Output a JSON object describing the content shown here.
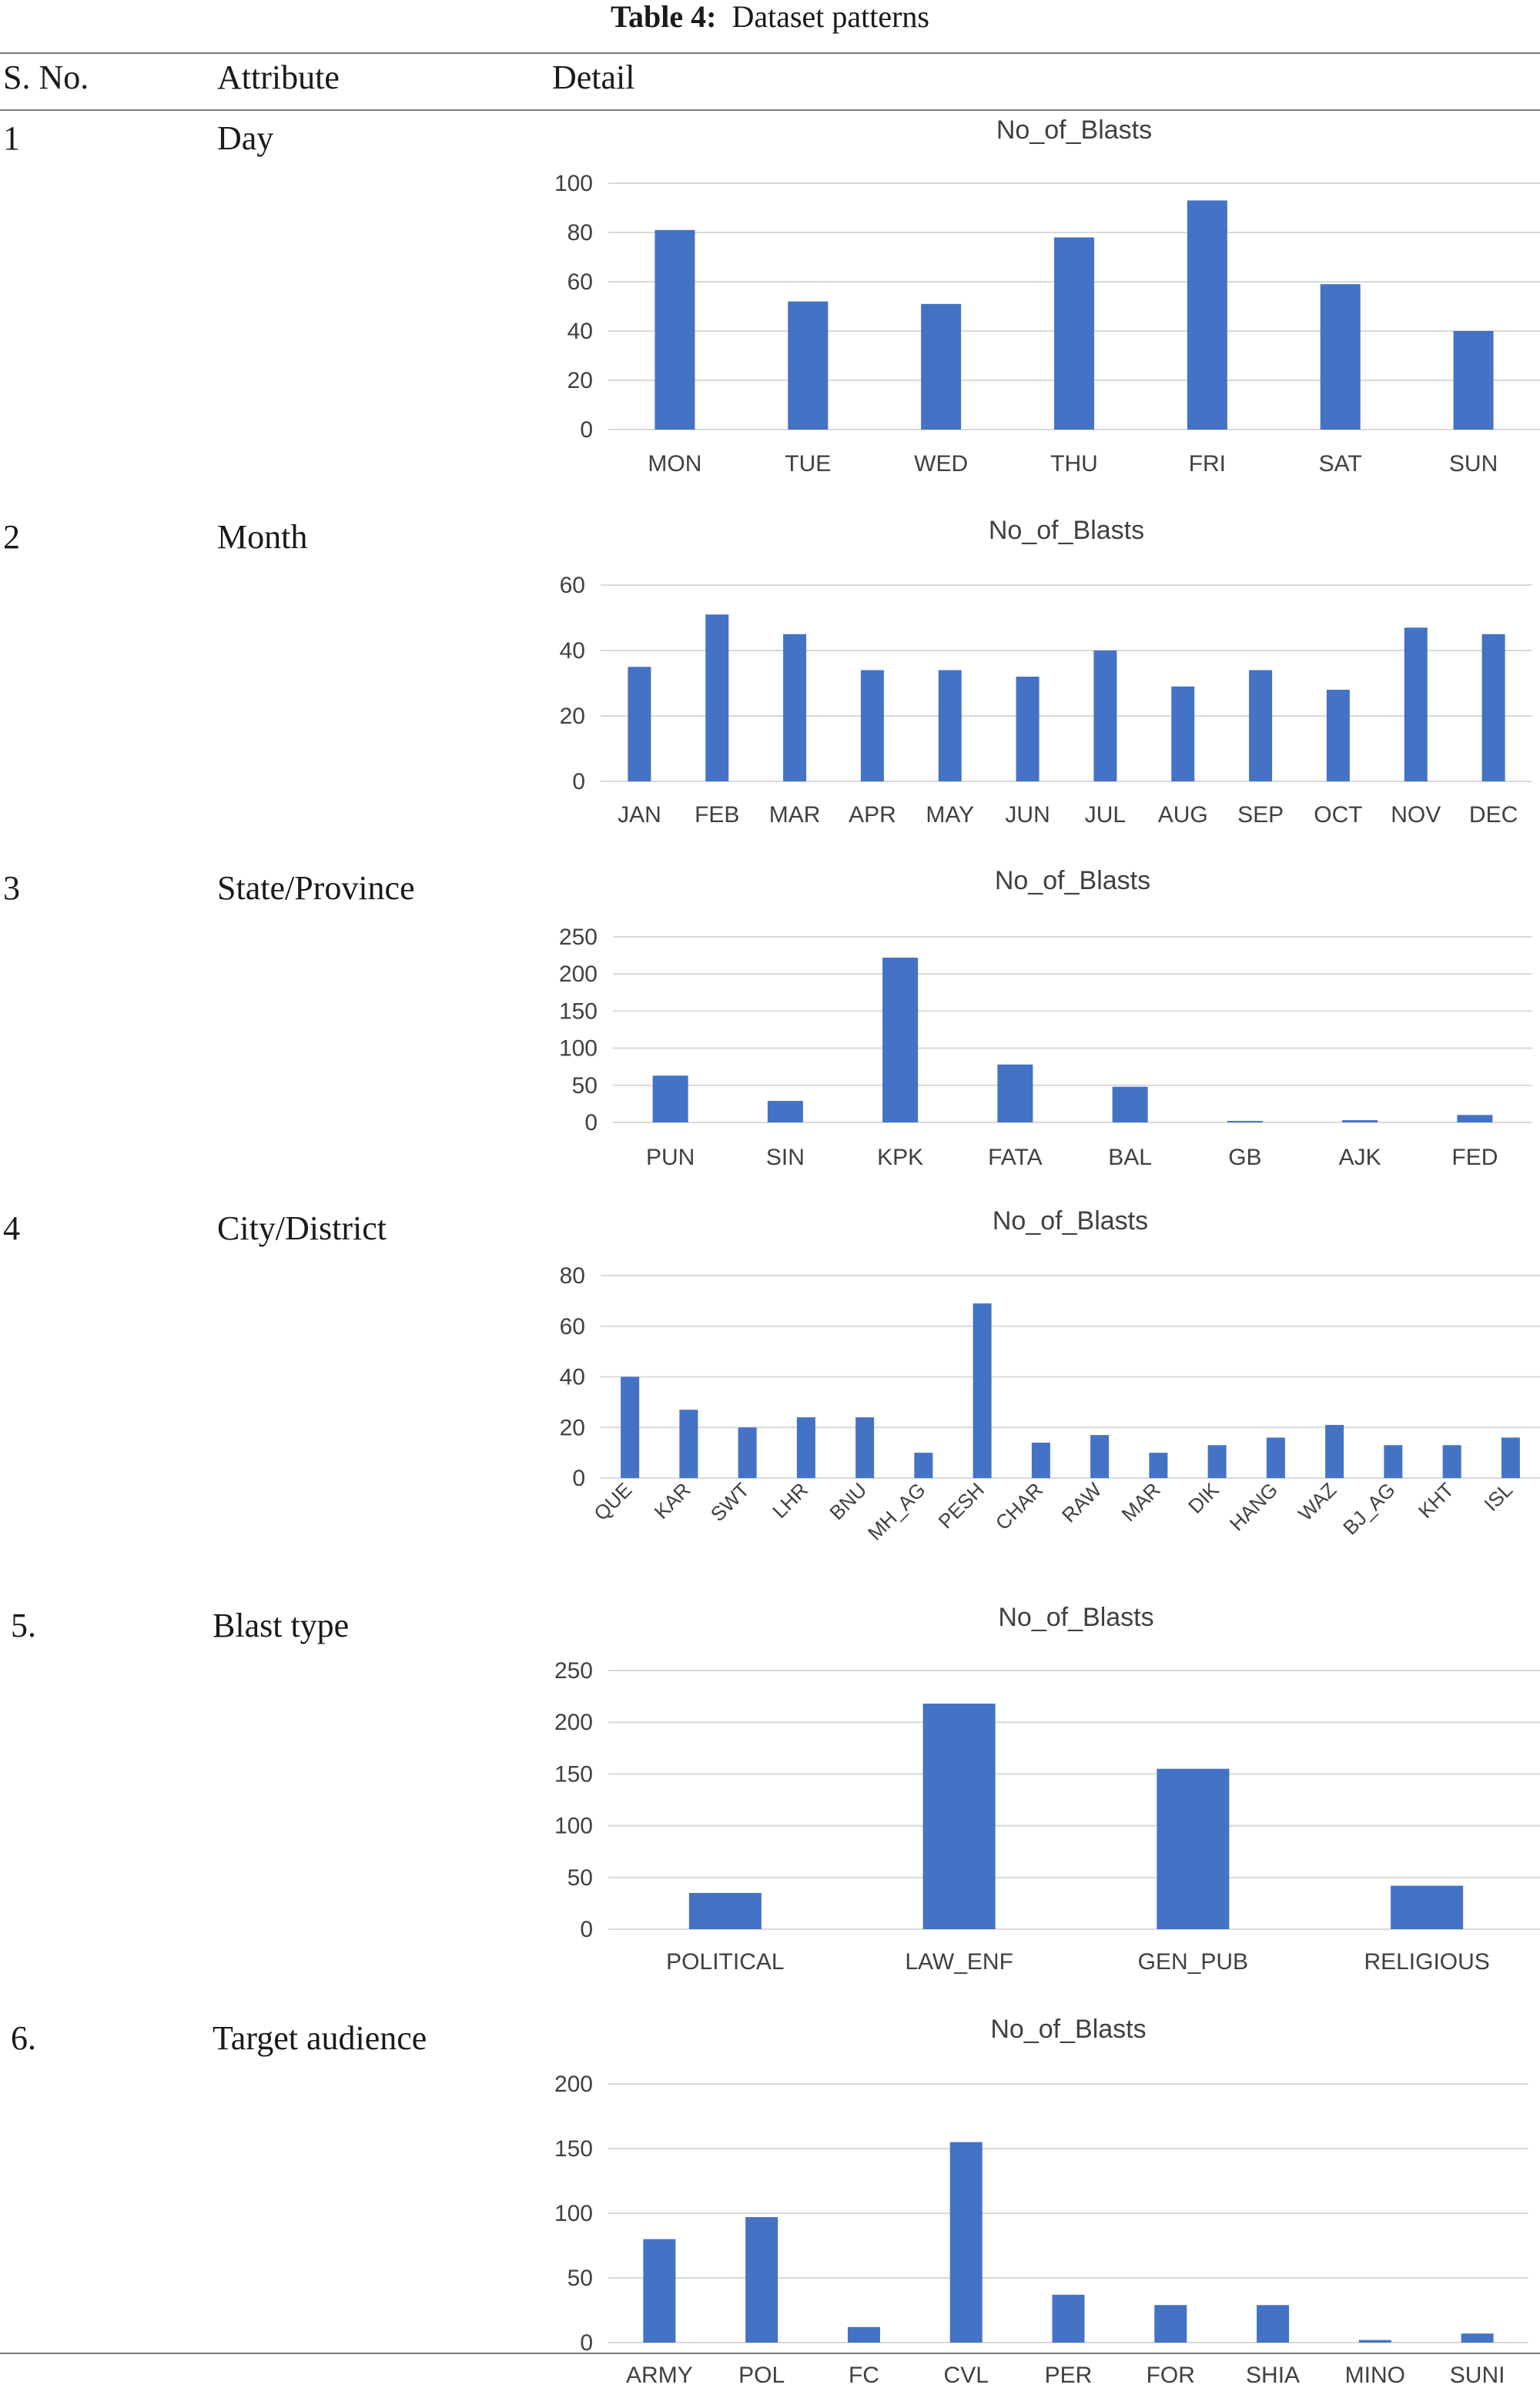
{
  "table": {
    "caption_label": "Table 4:",
    "caption_text": "Dataset patterns",
    "headers": [
      "S. No.",
      "Attribute",
      "Detail"
    ],
    "rows": [
      {
        "num": "1",
        "attribute": "Day"
      },
      {
        "num": "2",
        "attribute": "Month"
      },
      {
        "num": "3",
        "attribute": "State/Province"
      },
      {
        "num": "4",
        "attribute": "City/District"
      },
      {
        "num": "5.",
        "attribute": "Blast type"
      },
      {
        "num": "6.",
        "attribute": "Target audience"
      }
    ]
  },
  "colors": {
    "bar": "#4472C4",
    "grid": "#D9D9D9"
  },
  "chart_data": [
    {
      "type": "bar",
      "title": "No_of_Blasts",
      "categories": [
        "MON",
        "TUE",
        "WED",
        "THU",
        "FRI",
        "SAT",
        "SUN"
      ],
      "values": [
        81,
        52,
        51,
        78,
        93,
        59,
        40
      ],
      "ylim": [
        0,
        100
      ],
      "yticks": [
        0,
        20,
        40,
        60,
        80,
        100
      ],
      "grid": true
    },
    {
      "type": "bar",
      "title": "No_of_Blasts",
      "categories": [
        "JAN",
        "FEB",
        "MAR",
        "APR",
        "MAY",
        "JUN",
        "JUL",
        "AUG",
        "SEP",
        "OCT",
        "NOV",
        "DEC"
      ],
      "values": [
        35,
        51,
        45,
        34,
        34,
        32,
        40,
        29,
        34,
        28,
        47,
        45
      ],
      "ylim": [
        0,
        60
      ],
      "yticks": [
        0,
        20,
        40,
        60
      ],
      "grid": true
    },
    {
      "type": "bar",
      "title": "No_of_Blasts",
      "categories": [
        "PUN",
        "SIN",
        "KPK",
        "FATA",
        "BAL",
        "GB",
        "AJK",
        "FED"
      ],
      "values": [
        63,
        29,
        222,
        78,
        48,
        2,
        3,
        10
      ],
      "ylim": [
        0,
        250
      ],
      "yticks": [
        0,
        50,
        100,
        150,
        200,
        250
      ],
      "grid": true
    },
    {
      "type": "bar",
      "title": "No_of_Blasts",
      "categories": [
        "QUE",
        "KAR",
        "SWT",
        "LHR",
        "BNU",
        "MH_AG",
        "PESH",
        "CHAR",
        "RAW",
        "MAR",
        "DIK",
        "HANG",
        "WAZ",
        "BJ_AG",
        "KHT",
        "ISL"
      ],
      "values": [
        40,
        27,
        20,
        24,
        24,
        10,
        69,
        14,
        17,
        10,
        13,
        16,
        21,
        13,
        13,
        16
      ],
      "ylim": [
        0,
        80
      ],
      "yticks": [
        0,
        20,
        40,
        60,
        80
      ],
      "grid": true,
      "rotated_labels": true
    },
    {
      "type": "bar",
      "title": "No_of_Blasts",
      "categories": [
        "POLITICAL",
        "LAW_ENF",
        "GEN_PUB",
        "RELIGIOUS"
      ],
      "values": [
        35,
        218,
        155,
        42
      ],
      "ylim": [
        0,
        250
      ],
      "yticks": [
        0,
        50,
        100,
        150,
        200,
        250
      ],
      "grid": true
    },
    {
      "type": "bar",
      "title": "No_of_Blasts",
      "categories": [
        "ARMY",
        "POL",
        "FC",
        "CVL",
        "PER",
        "FOR",
        "SHIA",
        "MINO",
        "SUNI"
      ],
      "values": [
        80,
        97,
        12,
        155,
        37,
        29,
        29,
        2,
        7
      ],
      "ylim": [
        0,
        200
      ],
      "yticks": [
        0,
        50,
        100,
        150,
        200
      ],
      "grid": true
    }
  ]
}
